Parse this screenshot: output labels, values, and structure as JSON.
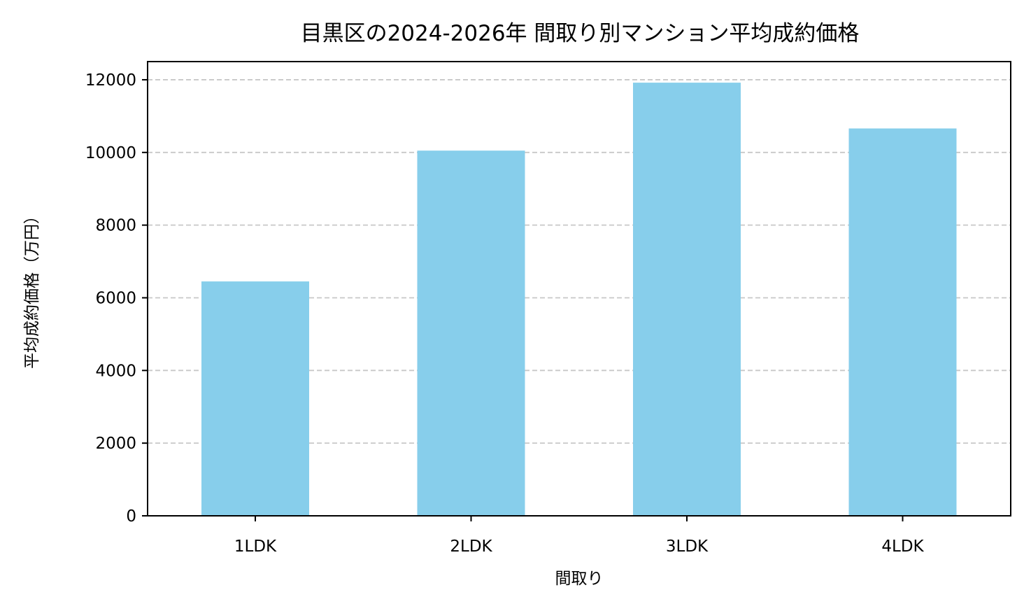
{
  "chart_data": {
    "type": "bar",
    "title": "目黒区の2024-2026年 間取り別マンション平均成約価格",
    "xlabel": "間取り",
    "ylabel": "平均成約価格（万円）",
    "categories": [
      "1LDK",
      "2LDK",
      "3LDK",
      "4LDK"
    ],
    "values": [
      6450,
      10050,
      11920,
      10660
    ],
    "ylim": [
      0,
      12500
    ],
    "yticks": [
      0,
      2000,
      4000,
      6000,
      8000,
      10000,
      12000
    ],
    "ytick_labels": [
      "0",
      "2000",
      "4000",
      "6000",
      "8000",
      "10000",
      "12000"
    ],
    "grid": "horizontal dashed",
    "legend": "none",
    "bar_color": "#87CEEB"
  }
}
